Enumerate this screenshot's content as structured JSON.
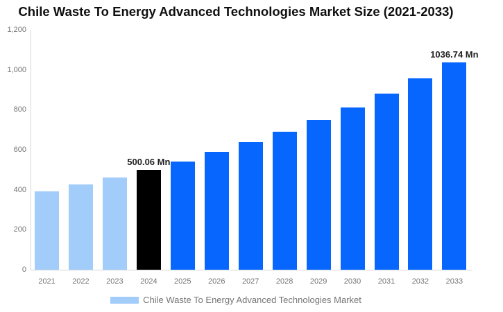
{
  "title": "Chile Waste To Energy Advanced Technologies Market Size (2021-2033)",
  "legend": {
    "label": "Chile Waste To Energy Advanced Technologies Market",
    "swatch_color": "#a2cdfb"
  },
  "colors": {
    "historical_bar": "#a2cdfb",
    "base_year_bar": "#000000",
    "forecast_bar": "#0666fe",
    "axis_label": "#757575",
    "axis_line": "#d6d6d6",
    "data_label": "#222222",
    "title_text": "#0f0f0f"
  },
  "chart_data": {
    "type": "bar",
    "title": "Chile Waste To Energy Advanced Technologies Market Size (2021-2033)",
    "xlabel": "",
    "ylabel": "",
    "unit": "Mn",
    "categories": [
      "2021",
      "2022",
      "2023",
      "2024",
      "2025",
      "2026",
      "2027",
      "2028",
      "2029",
      "2030",
      "2031",
      "2032",
      "2033"
    ],
    "values": [
      392.17,
      425.26,
      461.15,
      500.06,
      542.26,
      588.01,
      637.62,
      691.43,
      749.78,
      813.04,
      881.65,
      956.05,
      1036.74
    ],
    "bar_colors": [
      "#a2cdfb",
      "#a2cdfb",
      "#a2cdfb",
      "#000000",
      "#0666fe",
      "#0666fe",
      "#0666fe",
      "#0666fe",
      "#0666fe",
      "#0666fe",
      "#0666fe",
      "#0666fe",
      "#0666fe"
    ],
    "point_labels": [
      null,
      null,
      null,
      "500.06 Mn",
      null,
      null,
      null,
      null,
      null,
      null,
      null,
      null,
      "1036.74 Mn"
    ],
    "segments": {
      "historical_years": [
        "2021",
        "2022",
        "2023"
      ],
      "base_year": "2024",
      "forecast_years": [
        "2025",
        "2026",
        "2027",
        "2028",
        "2029",
        "2030",
        "2031",
        "2032",
        "2033"
      ]
    },
    "ylim": [
      0,
      1200
    ],
    "yticks": {
      "values": [
        0,
        200,
        400,
        600,
        800,
        1000,
        1200
      ],
      "labels": [
        "0",
        "200",
        "400",
        "600",
        "800",
        "1,000",
        "1,200"
      ]
    },
    "grid": false,
    "legend_position": "bottom",
    "legend_entries": [
      "Chile Waste To Energy Advanced Technologies Market"
    ]
  }
}
